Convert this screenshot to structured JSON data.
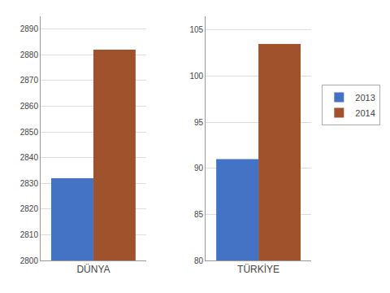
{
  "chart_data": [
    {
      "type": "bar",
      "categories": [
        "DÜNYA"
      ],
      "series": [
        {
          "name": "2013",
          "color": "#4472C4",
          "values": [
            2832
          ]
        },
        {
          "name": "2014",
          "color": "#A0522D",
          "values": [
            2882
          ]
        }
      ],
      "ylim": [
        2800,
        2895
      ],
      "yticks": [
        2800,
        2810,
        2820,
        2830,
        2840,
        2850,
        2860,
        2870,
        2880,
        2890
      ],
      "grid": true,
      "legend": false
    },
    {
      "type": "bar",
      "categories": [
        "TÜRKİYE"
      ],
      "series": [
        {
          "name": "2013",
          "color": "#4472C4",
          "values": [
            91
          ]
        },
        {
          "name": "2014",
          "color": "#A0522D",
          "values": [
            103.5
          ]
        }
      ],
      "ylim": [
        80,
        106.5
      ],
      "yticks": [
        80,
        85,
        90,
        95,
        100,
        105
      ],
      "grid": true,
      "legend": "right"
    }
  ]
}
